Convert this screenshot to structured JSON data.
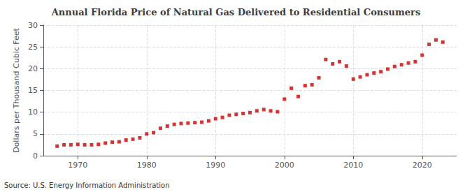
{
  "chart_data": {
    "type": "scatter",
    "title": "Annual Florida Price of Natural Gas Delivered to Residential Consumers",
    "ylabel": "Dollars per Thousand Cubic Feet",
    "annotation": "Source: U.S. Energy Information Administration",
    "x": [
      1967,
      1968,
      1969,
      1970,
      1971,
      1972,
      1973,
      1974,
      1975,
      1976,
      1977,
      1978,
      1979,
      1980,
      1981,
      1982,
      1983,
      1984,
      1985,
      1986,
      1987,
      1988,
      1989,
      1990,
      1991,
      1992,
      1993,
      1994,
      1995,
      1996,
      1997,
      1998,
      1999,
      2000,
      2001,
      2002,
      2003,
      2004,
      2005,
      2006,
      2007,
      2008,
      2009,
      2010,
      2011,
      2012,
      2013,
      2014,
      2015,
      2016,
      2017,
      2018,
      2019,
      2020,
      2021,
      2022,
      2023
    ],
    "values": [
      2.2,
      2.5,
      2.5,
      2.6,
      2.5,
      2.5,
      2.6,
      2.9,
      3.1,
      3.2,
      3.6,
      3.8,
      4.1,
      5.0,
      5.3,
      6.3,
      6.8,
      7.2,
      7.4,
      7.5,
      7.6,
      7.7,
      8.0,
      8.5,
      8.8,
      9.3,
      9.5,
      9.7,
      9.9,
      10.3,
      10.6,
      10.3,
      10.1,
      13.0,
      15.5,
      13.6,
      16.1,
      16.3,
      17.9,
      22.1,
      21.1,
      21.6,
      20.6,
      17.6,
      18.1,
      18.6,
      19.0,
      19.3,
      19.9,
      20.5,
      20.9,
      21.3,
      21.6,
      23.1,
      25.6,
      26.6,
      26.1
    ],
    "color": "#cc0000",
    "marker": "square",
    "xlim": [
      1965,
      2025
    ],
    "ylim": [
      0,
      30
    ],
    "xticks": [
      1970,
      1980,
      1990,
      2000,
      2010,
      2020
    ],
    "yticks": [
      0,
      5,
      10,
      15,
      20,
      25,
      30
    ],
    "grid": true
  }
}
